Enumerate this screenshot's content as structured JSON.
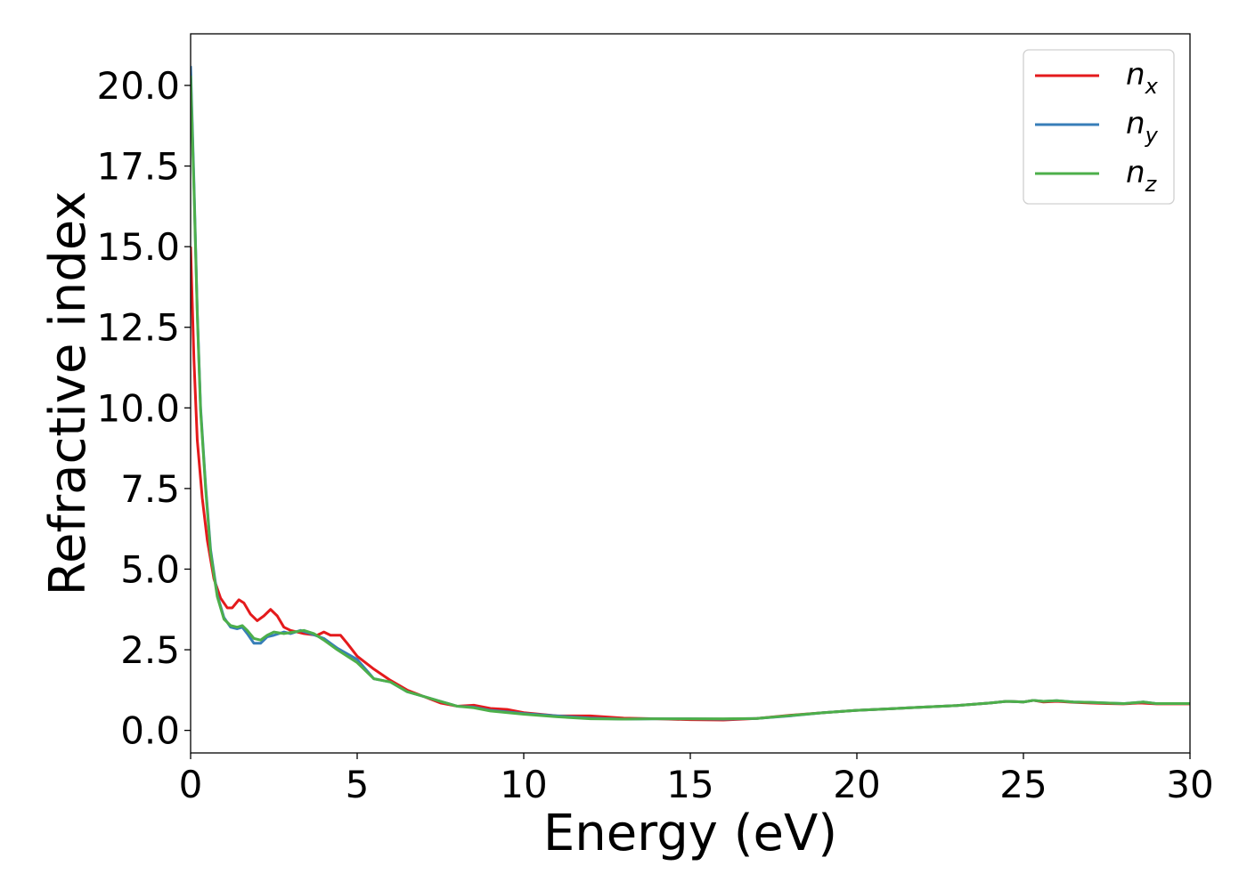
{
  "chart_data": {
    "type": "line",
    "title": "",
    "xlabel": "Energy (eV)",
    "ylabel": "Refractive index",
    "xlim": [
      0,
      30
    ],
    "ylim": [
      -0.7,
      21.6
    ],
    "x_ticks": [
      0,
      5,
      10,
      15,
      20,
      25,
      30
    ],
    "y_ticks": [
      0.0,
      2.5,
      5.0,
      7.5,
      10.0,
      12.5,
      15.0,
      17.5,
      20.0
    ],
    "x_tick_labels": [
      "0",
      "5",
      "10",
      "15",
      "20",
      "25",
      "30"
    ],
    "y_tick_labels": [
      "0.0",
      "2.5",
      "5.0",
      "7.5",
      "10.0",
      "12.5",
      "15.0",
      "17.5",
      "20.0"
    ],
    "grid": false,
    "legend_position": "top-right",
    "series": [
      {
        "name": "n",
        "subscript": "x",
        "color": "#e41a1c",
        "points": [
          [
            0,
            15.0
          ],
          [
            0.1,
            11.5
          ],
          [
            0.2,
            9.0
          ],
          [
            0.35,
            7.2
          ],
          [
            0.5,
            5.9
          ],
          [
            0.7,
            4.7
          ],
          [
            0.9,
            4.1
          ],
          [
            1.1,
            3.8
          ],
          [
            1.25,
            3.8
          ],
          [
            1.45,
            4.05
          ],
          [
            1.6,
            3.95
          ],
          [
            1.8,
            3.6
          ],
          [
            2.0,
            3.4
          ],
          [
            2.2,
            3.55
          ],
          [
            2.4,
            3.75
          ],
          [
            2.6,
            3.55
          ],
          [
            2.8,
            3.2
          ],
          [
            3.0,
            3.1
          ],
          [
            3.4,
            3.0
          ],
          [
            3.8,
            2.95
          ],
          [
            4.0,
            3.05
          ],
          [
            4.2,
            2.95
          ],
          [
            4.5,
            2.95
          ],
          [
            4.7,
            2.7
          ],
          [
            5.0,
            2.3
          ],
          [
            5.5,
            1.9
          ],
          [
            6.0,
            1.55
          ],
          [
            6.5,
            1.25
          ],
          [
            7.0,
            1.05
          ],
          [
            7.5,
            0.85
          ],
          [
            8.0,
            0.75
          ],
          [
            8.5,
            0.78
          ],
          [
            9.0,
            0.68
          ],
          [
            9.5,
            0.65
          ],
          [
            10.0,
            0.55
          ],
          [
            11.0,
            0.45
          ],
          [
            12.0,
            0.45
          ],
          [
            13.0,
            0.38
          ],
          [
            14.0,
            0.36
          ],
          [
            15.0,
            0.33
          ],
          [
            16.0,
            0.32
          ],
          [
            17.0,
            0.37
          ],
          [
            18.0,
            0.47
          ],
          [
            19.0,
            0.55
          ],
          [
            20.0,
            0.62
          ],
          [
            21.0,
            0.67
          ],
          [
            22.0,
            0.72
          ],
          [
            23.0,
            0.77
          ],
          [
            24.0,
            0.85
          ],
          [
            24.5,
            0.9
          ],
          [
            25.0,
            0.88
          ],
          [
            25.3,
            0.93
          ],
          [
            25.6,
            0.88
          ],
          [
            26.0,
            0.9
          ],
          [
            26.5,
            0.87
          ],
          [
            27.0,
            0.85
          ],
          [
            27.5,
            0.83
          ],
          [
            28.0,
            0.82
          ],
          [
            28.5,
            0.85
          ],
          [
            29.0,
            0.82
          ],
          [
            30.0,
            0.82
          ]
        ]
      },
      {
        "name": "n",
        "subscript": "y",
        "color": "#377eb8",
        "points": [
          [
            0,
            20.6
          ],
          [
            0.1,
            17.0
          ],
          [
            0.2,
            13.0
          ],
          [
            0.3,
            10.0
          ],
          [
            0.45,
            7.6
          ],
          [
            0.6,
            5.6
          ],
          [
            0.8,
            4.2
          ],
          [
            1.0,
            3.5
          ],
          [
            1.2,
            3.2
          ],
          [
            1.4,
            3.15
          ],
          [
            1.55,
            3.2
          ],
          [
            1.7,
            3.0
          ],
          [
            1.9,
            2.7
          ],
          [
            2.1,
            2.7
          ],
          [
            2.3,
            2.9
          ],
          [
            2.5,
            2.95
          ],
          [
            2.8,
            3.05
          ],
          [
            3.0,
            3.0
          ],
          [
            3.3,
            3.1
          ],
          [
            3.6,
            3.0
          ],
          [
            4.0,
            2.85
          ],
          [
            4.4,
            2.55
          ],
          [
            5.0,
            2.2
          ],
          [
            5.5,
            1.6
          ],
          [
            6.0,
            1.5
          ],
          [
            6.5,
            1.2
          ],
          [
            7.0,
            1.05
          ],
          [
            7.5,
            0.9
          ],
          [
            8.0,
            0.75
          ],
          [
            8.5,
            0.72
          ],
          [
            9.0,
            0.62
          ],
          [
            10.0,
            0.52
          ],
          [
            11.0,
            0.45
          ],
          [
            12.0,
            0.38
          ],
          [
            13.0,
            0.35
          ],
          [
            14.0,
            0.36
          ],
          [
            15.0,
            0.36
          ],
          [
            16.0,
            0.35
          ],
          [
            17.0,
            0.37
          ],
          [
            18.0,
            0.45
          ],
          [
            19.0,
            0.55
          ],
          [
            20.0,
            0.62
          ],
          [
            21.0,
            0.67
          ],
          [
            22.0,
            0.72
          ],
          [
            23.0,
            0.77
          ],
          [
            24.0,
            0.85
          ],
          [
            24.5,
            0.9
          ],
          [
            25.0,
            0.88
          ],
          [
            25.3,
            0.93
          ],
          [
            25.6,
            0.9
          ],
          [
            26.0,
            0.92
          ],
          [
            26.5,
            0.88
          ],
          [
            27.0,
            0.87
          ],
          [
            27.5,
            0.85
          ],
          [
            28.0,
            0.83
          ],
          [
            28.6,
            0.88
          ],
          [
            29.0,
            0.83
          ],
          [
            30.0,
            0.83
          ]
        ]
      },
      {
        "name": "n",
        "subscript": "z",
        "color": "#4daf4a",
        "points": [
          [
            0,
            20.3
          ],
          [
            0.1,
            16.8
          ],
          [
            0.2,
            12.9
          ],
          [
            0.3,
            9.9
          ],
          [
            0.45,
            7.5
          ],
          [
            0.6,
            5.5
          ],
          [
            0.8,
            4.15
          ],
          [
            1.0,
            3.45
          ],
          [
            1.2,
            3.25
          ],
          [
            1.4,
            3.2
          ],
          [
            1.55,
            3.25
          ],
          [
            1.7,
            3.1
          ],
          [
            1.9,
            2.85
          ],
          [
            2.1,
            2.8
          ],
          [
            2.3,
            2.95
          ],
          [
            2.5,
            3.05
          ],
          [
            2.8,
            3.0
          ],
          [
            3.1,
            3.05
          ],
          [
            3.4,
            3.1
          ],
          [
            3.7,
            3.0
          ],
          [
            4.0,
            2.8
          ],
          [
            4.4,
            2.5
          ],
          [
            5.0,
            2.1
          ],
          [
            5.5,
            1.6
          ],
          [
            6.0,
            1.5
          ],
          [
            6.5,
            1.2
          ],
          [
            7.0,
            1.05
          ],
          [
            7.5,
            0.9
          ],
          [
            8.0,
            0.75
          ],
          [
            8.5,
            0.7
          ],
          [
            9.0,
            0.6
          ],
          [
            10.0,
            0.5
          ],
          [
            11.0,
            0.42
          ],
          [
            12.0,
            0.36
          ],
          [
            13.0,
            0.35
          ],
          [
            14.0,
            0.36
          ],
          [
            15.0,
            0.36
          ],
          [
            16.0,
            0.36
          ],
          [
            17.0,
            0.37
          ],
          [
            18.0,
            0.46
          ],
          [
            19.0,
            0.55
          ],
          [
            20.0,
            0.62
          ],
          [
            21.0,
            0.67
          ],
          [
            22.0,
            0.72
          ],
          [
            23.0,
            0.77
          ],
          [
            24.0,
            0.85
          ],
          [
            24.5,
            0.9
          ],
          [
            25.0,
            0.88
          ],
          [
            25.3,
            0.93
          ],
          [
            25.6,
            0.9
          ],
          [
            26.0,
            0.92
          ],
          [
            26.5,
            0.88
          ],
          [
            27.0,
            0.87
          ],
          [
            27.5,
            0.85
          ],
          [
            28.0,
            0.83
          ],
          [
            28.6,
            0.88
          ],
          [
            29.0,
            0.83
          ],
          [
            30.0,
            0.83
          ]
        ]
      }
    ]
  }
}
